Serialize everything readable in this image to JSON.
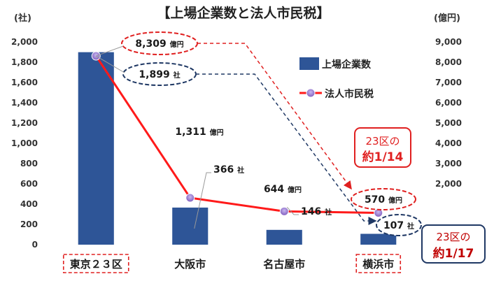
{
  "chart_data": {
    "type": "bar+line",
    "title": "【上場企業数と法人市民税】",
    "left_axis_unit": "(社)",
    "right_axis_unit": "(億円)",
    "categories": [
      "東京２３区",
      "大阪市",
      "名古屋市",
      "横浜市"
    ],
    "highlighted_categories": [
      "東京２３区",
      "横浜市"
    ],
    "left_ticks": [
      "0",
      "200",
      "400",
      "600",
      "800",
      "1,000",
      "1,200",
      "1,400",
      "1,600",
      "1,800",
      "2,000"
    ],
    "right_ticks": [
      "2,000",
      "3,000",
      "4,000",
      "5,000",
      "6,000",
      "7,000",
      "8,000",
      "9,000"
    ],
    "ylim_left": [
      0,
      2000
    ],
    "ylim_right": [
      -1000,
      9000
    ],
    "series": [
      {
        "name": "上場企業数",
        "type": "bar",
        "axis": "left",
        "color": "#2e5597",
        "values": [
          1899,
          366,
          146,
          107
        ]
      },
      {
        "name": "法人市民税",
        "type": "line",
        "axis": "right",
        "color": "#ff1a1a",
        "marker_color": "#7e5bbd",
        "values": [
          8309,
          1311,
          644,
          570
        ]
      }
    ],
    "data_labels": {
      "companies": [
        {
          "num": "1,899",
          "unit": "社"
        },
        {
          "num": "366",
          "unit": "社"
        },
        {
          "num": "146",
          "unit": "社"
        },
        {
          "num": "107",
          "unit": "社"
        }
      ],
      "tax": [
        {
          "num": "8,309",
          "unit": "億円"
        },
        {
          "num": "1,311",
          "unit": "億円"
        },
        {
          "num": "644",
          "unit": "億円"
        },
        {
          "num": "570",
          "unit": "億円"
        }
      ]
    },
    "legend_position": "right",
    "annotations": [
      {
        "line1": "23区の",
        "line2": "約1/14",
        "color": "#e02020"
      },
      {
        "line1": "23区の",
        "line2": "約1/17",
        "color": "#c00000"
      }
    ]
  }
}
